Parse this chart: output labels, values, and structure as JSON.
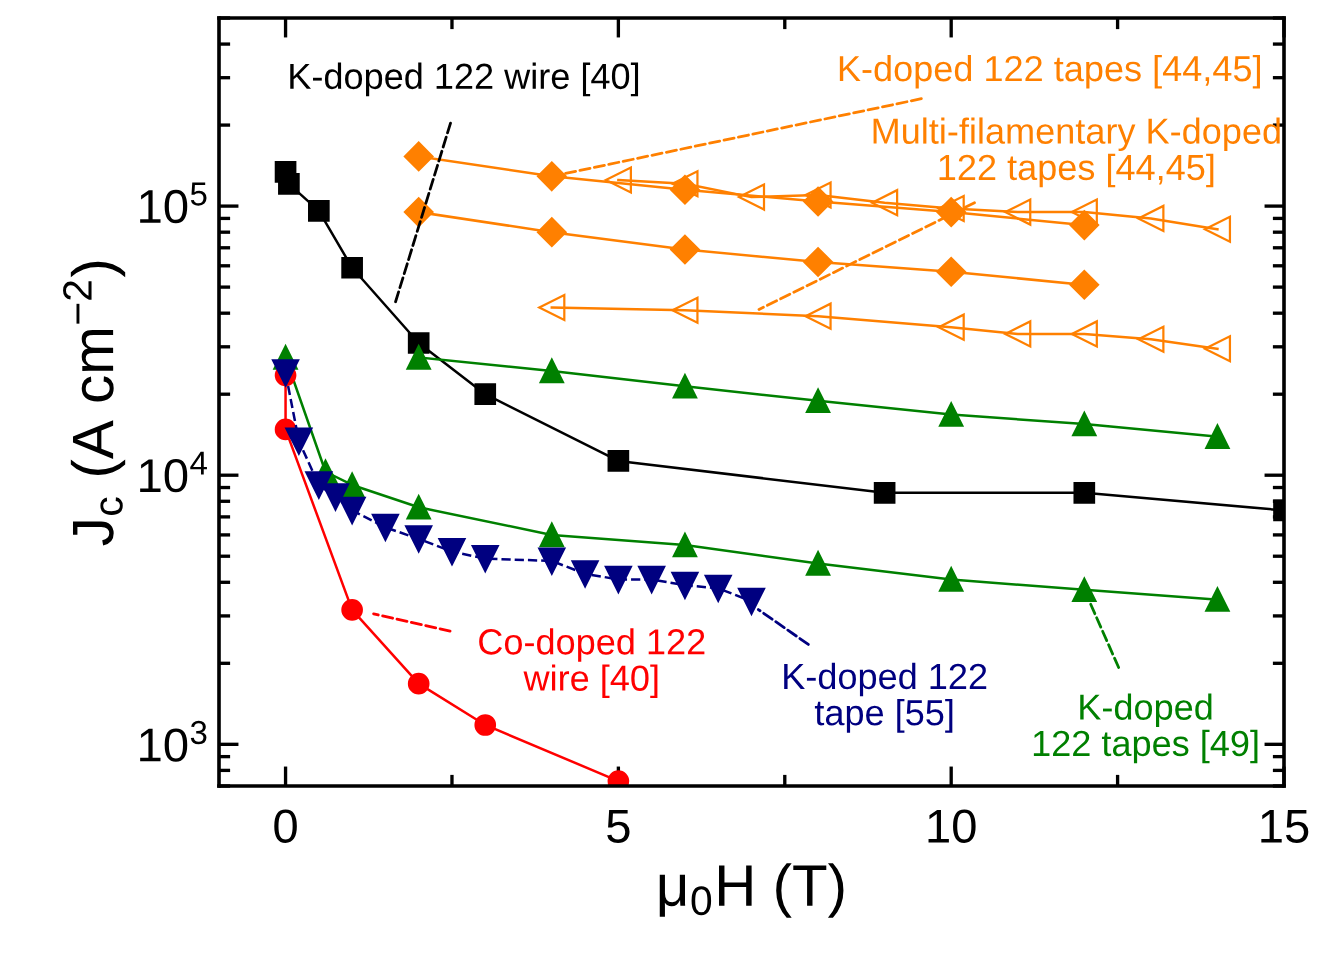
{
  "chart_data": {
    "type": "line",
    "xlabel": "μ$_{0}$H (T)",
    "ylabel": "J$_{c}$ (A cm$^{−2}$)",
    "log": "y",
    "xlim": [
      -1,
      15
    ],
    "xticks": [
      0,
      5,
      10,
      15
    ],
    "ylim": [
      700,
      500000
    ],
    "yticks": [
      {
        "value": 1000,
        "label": "10$^{3}$"
      },
      {
        "value": 10000,
        "label": "10$^{4}$"
      },
      {
        "value": 100000,
        "label": "10$^{5}$"
      }
    ],
    "grid": false,
    "series": [
      {
        "color": "#000000",
        "marker": "square",
        "line_style": "solid",
        "x": [
          0,
          0.05,
          0.5,
          1,
          2,
          3,
          5,
          9,
          12,
          15
        ],
        "values": [
          134000,
          121000,
          96000,
          59000,
          31000,
          20000,
          11300,
          8600,
          8600,
          7400
        ]
      },
      {
        "color": "#ff8000",
        "marker": "diamond",
        "line_style": "solid",
        "x": [
          2,
          4,
          6,
          8,
          10,
          12
        ],
        "values": [
          153000,
          129000,
          115000,
          104000,
          95000,
          85000
        ]
      },
      {
        "color": "#ff8000",
        "marker": "diamond",
        "line_style": "solid",
        "x": [
          2,
          4,
          6,
          8,
          10,
          12
        ],
        "values": [
          95000,
          80000,
          69000,
          62000,
          57000,
          51000
        ]
      },
      {
        "color": "#ff8000",
        "marker": "triangle-left-open",
        "line_style": "solid",
        "x": [
          5,
          6,
          7,
          8,
          9,
          10,
          11,
          12,
          13,
          14
        ],
        "values": [
          125000,
          121000,
          108000,
          110000,
          103000,
          98000,
          95000,
          95000,
          90000,
          82000
        ]
      },
      {
        "color": "#ff8000",
        "marker": "triangle-left-open",
        "line_style": "solid",
        "x": [
          4,
          6,
          8,
          10,
          11,
          12,
          13,
          14
        ],
        "values": [
          42000,
          41000,
          39000,
          35500,
          33500,
          33500,
          32000,
          29500
        ]
      },
      {
        "color": "#008000",
        "marker": "triangle",
        "line_style": "solid",
        "x": [
          2,
          4,
          6,
          8,
          10,
          12,
          14
        ],
        "values": [
          27400,
          24400,
          21400,
          18900,
          16800,
          15500,
          13900
        ]
      },
      {
        "color": "#008000",
        "marker": "triangle",
        "line_style": "solid",
        "x": [
          0,
          0.6,
          1,
          2,
          4,
          6,
          8,
          10,
          12,
          14
        ],
        "values": [
          27400,
          10300,
          9200,
          7600,
          6000,
          5500,
          4700,
          4100,
          3750,
          3450
        ]
      },
      {
        "color": "#ff0000",
        "marker": "circle",
        "line_style": "solid",
        "x": [
          0,
          0,
          1,
          2,
          3,
          5
        ],
        "values": [
          23500,
          14800,
          3160,
          1680,
          1180,
          730
        ]
      },
      {
        "color": "#000080",
        "marker": "triangle-down",
        "line_style": "dashed",
        "x": [
          0,
          0.2,
          0.5,
          0.75,
          1,
          1.5,
          2,
          2.5,
          3,
          4,
          4.5,
          5,
          5.5,
          6,
          6.5,
          7
        ],
        "values": [
          24000,
          13400,
          9200,
          8300,
          7400,
          6400,
          5800,
          5200,
          4900,
          4800,
          4300,
          4100,
          4100,
          3900,
          3800,
          3400
        ]
      }
    ],
    "annotations": [
      {
        "text": "K-doped 122 wire [40]",
        "x": 1.6,
        "y": 40000
      },
      {
        "text": "K-doped 122 tapes [44,45]",
        "x": 4,
        "y": 129000
      },
      {
        "text": "Multi-filamentary K-doped\n122 tapes [44,45]",
        "x": 7,
        "y": 40000
      },
      {
        "text": "Co-doped 122\nwire [40]",
        "x": 1.2,
        "y": 3100
      },
      {
        "text": "K-doped 122\ntape [55]",
        "x": 7,
        "y": 3300
      },
      {
        "text": "K-doped\n122 tapes [49]",
        "x": 12,
        "y": 3750
      }
    ]
  }
}
